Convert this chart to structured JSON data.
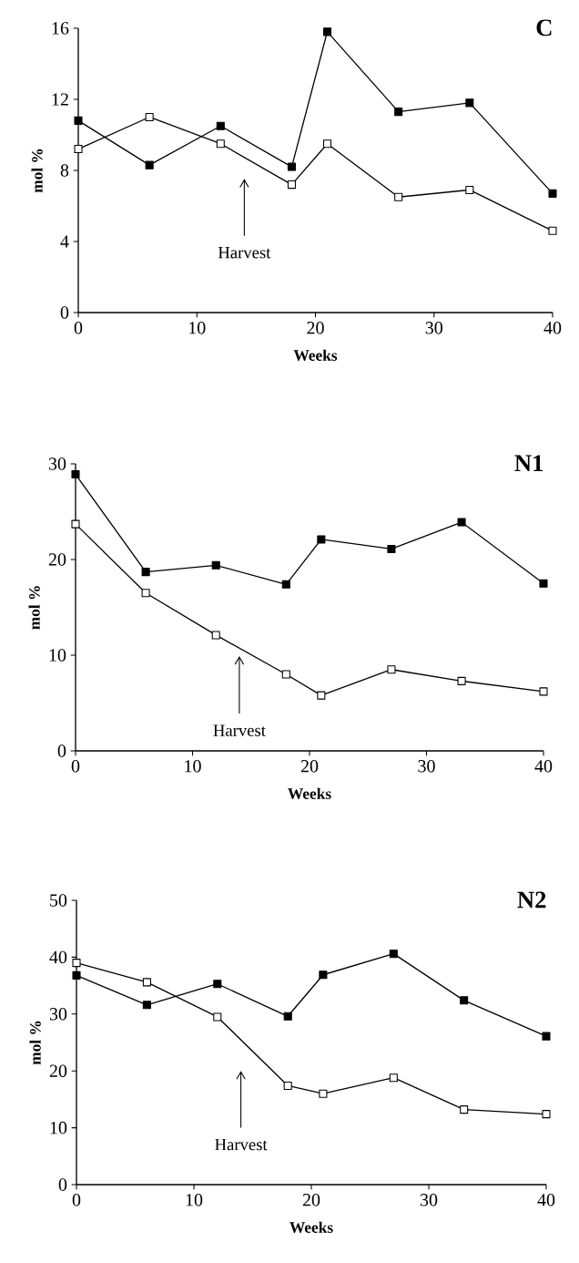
{
  "chart_data": [
    {
      "type": "line",
      "title": "C",
      "xlabel": "Weeks",
      "ylabel": "mol %",
      "x": [
        0,
        6,
        12,
        18,
        21,
        27,
        33,
        40
      ],
      "xlim": [
        0,
        40
      ],
      "xticks": [
        0,
        10,
        20,
        30,
        40
      ],
      "ylim": [
        0,
        16
      ],
      "yticks": [
        0,
        4,
        8,
        12,
        16
      ],
      "marker": "square",
      "line_style": "solid",
      "grid": false,
      "series": [
        {
          "color": "#000000",
          "values": [
            10.8,
            8.3,
            10.5,
            8.2,
            15.8,
            11.3,
            11.8,
            6.7
          ]
        },
        {
          "color": "#000000",
          "values": [
            9.2,
            11.0,
            9.5,
            7.2,
            9.5,
            6.5,
            6.9,
            4.6
          ]
        }
      ],
      "annotations": [
        "Harvest"
      ]
    },
    {
      "type": "line",
      "title": "N1",
      "xlabel": "Weeks",
      "ylabel": "mol %",
      "x": [
        0,
        6,
        12,
        18,
        21,
        27,
        33,
        40
      ],
      "xlim": [
        0,
        40
      ],
      "xticks": [
        0,
        10,
        20,
        30,
        40
      ],
      "ylim": [
        0,
        30
      ],
      "yticks": [
        0,
        10,
        20,
        30
      ],
      "marker": "square",
      "line_style": "solid",
      "grid": false,
      "series": [
        {
          "color": "#000000",
          "values": [
            28.9,
            18.7,
            19.4,
            17.4,
            22.1,
            21.1,
            23.9,
            17.5
          ]
        },
        {
          "color": "#000000",
          "values": [
            23.7,
            16.5,
            12.1,
            8.0,
            5.8,
            8.5,
            7.3,
            6.2
          ]
        }
      ],
      "annotations": [
        "Harvest"
      ]
    },
    {
      "type": "line",
      "title": "N2",
      "xlabel": "Weeks",
      "ylabel": "mol %",
      "x": [
        0,
        6,
        12,
        18,
        21,
        27,
        33,
        40
      ],
      "xlim": [
        0,
        40
      ],
      "xticks": [
        0,
        10,
        20,
        30,
        40
      ],
      "ylim": [
        0,
        50
      ],
      "yticks": [
        0,
        10,
        20,
        30,
        40,
        50
      ],
      "marker": "square",
      "line_style": "solid",
      "grid": false,
      "series": [
        {
          "color": "#000000",
          "values": [
            36.8,
            31.6,
            35.3,
            29.6,
            36.9,
            40.6,
            32.4,
            26.1
          ]
        },
        {
          "color": "#000000",
          "values": [
            39.0,
            35.6,
            29.5,
            17.4,
            16.0,
            18.8,
            13.2,
            12.4
          ]
        }
      ],
      "annotations": [
        "Harvest"
      ]
    }
  ]
}
